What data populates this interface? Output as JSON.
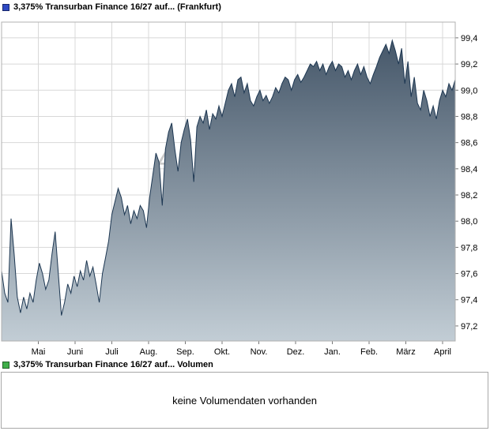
{
  "header": {
    "legend_label": "3,375% Transurban Finance 16/27 auf... (Frankfurt)"
  },
  "volume": {
    "legend_label": "3,375% Transurban Finance 16/27 auf... Volumen",
    "message": "keine Volumendaten vorhanden"
  },
  "colors": {
    "price_square": "#2e49c3",
    "volume_square": "#3fae49",
    "line": "#1d3752",
    "fill_top": "#3e5063",
    "fill_bottom": "#c2cdd5",
    "grid": "#d8d8d8",
    "border": "#b0b0b0",
    "tick": "#777777",
    "watermark": "#bdbdbd"
  },
  "chart_data": {
    "type": "area",
    "title": "3,375% Transurban Finance 16/27 auf... (Frankfurt)",
    "xlabel": "",
    "ylabel": "",
    "grid": true,
    "legend_position": "top-left",
    "x_tick_labels": [
      "Mai",
      "Juni",
      "Juli",
      "Aug.",
      "Sep.",
      "Okt.",
      "Nov.",
      "Dez.",
      "Jan.",
      "Feb.",
      "März",
      "April"
    ],
    "y_tick_labels": [
      "99,4",
      "99,2",
      "99,0",
      "98,8",
      "98,6",
      "98,4",
      "98,2",
      "98,0",
      "97,8",
      "97,6",
      "97,4",
      "97,2"
    ],
    "ylim": [
      97.085,
      99.52
    ],
    "watermark": "A",
    "values": [
      97.62,
      97.45,
      97.38,
      98.02,
      97.75,
      97.42,
      97.3,
      97.42,
      97.33,
      97.45,
      97.38,
      97.55,
      97.68,
      97.6,
      97.48,
      97.55,
      97.75,
      97.92,
      97.6,
      97.28,
      97.38,
      97.52,
      97.45,
      97.58,
      97.5,
      97.62,
      97.55,
      97.7,
      97.58,
      97.65,
      97.52,
      97.38,
      97.6,
      97.72,
      97.85,
      98.05,
      98.15,
      98.25,
      98.18,
      98.05,
      98.12,
      97.98,
      98.08,
      98.02,
      98.12,
      98.08,
      97.95,
      98.18,
      98.35,
      98.52,
      98.45,
      98.12,
      98.55,
      98.68,
      98.75,
      98.55,
      98.38,
      98.6,
      98.7,
      98.78,
      98.62,
      98.3,
      98.72,
      98.8,
      98.75,
      98.85,
      98.7,
      98.82,
      98.78,
      98.88,
      98.8,
      98.9,
      99.0,
      99.05,
      98.95,
      99.08,
      99.1,
      98.98,
      99.05,
      98.92,
      98.88,
      98.95,
      99.0,
      98.92,
      98.96,
      98.9,
      98.95,
      99.02,
      98.98,
      99.05,
      99.1,
      99.08,
      99.0,
      99.08,
      99.12,
      99.06,
      99.1,
      99.15,
      99.2,
      99.18,
      99.22,
      99.15,
      99.2,
      99.12,
      99.18,
      99.22,
      99.15,
      99.2,
      99.18,
      99.1,
      99.15,
      99.08,
      99.15,
      99.2,
      99.12,
      99.18,
      99.1,
      99.05,
      99.12,
      99.18,
      99.25,
      99.3,
      99.35,
      99.28,
      99.38,
      99.3,
      99.2,
      99.32,
      99.05,
      99.22,
      98.95,
      99.1,
      98.9,
      98.85,
      99.0,
      98.92,
      98.8,
      98.88,
      98.78,
      98.92,
      99.0,
      98.95,
      99.05,
      99.0,
      99.08
    ]
  }
}
